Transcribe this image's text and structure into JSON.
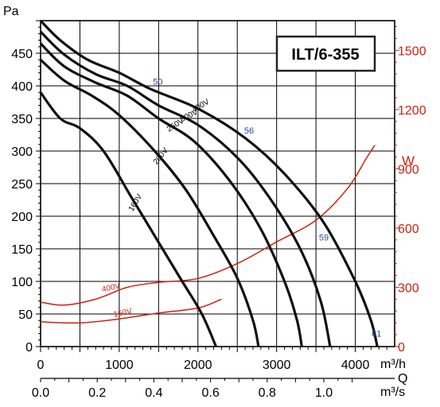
{
  "chart_data": {
    "type": "line",
    "model_label": "ILT/6-355",
    "x_axis": {
      "unit": "m³/h",
      "ticks": [
        0,
        1000,
        2000,
        3000,
        4000
      ],
      "range": [
        0,
        4500
      ]
    },
    "x2_axis": {
      "name": "Q",
      "unit": "m³/s",
      "ticks": [
        "0.0",
        "0.2",
        "0.4",
        "0.6",
        "0.8",
        "1.0"
      ]
    },
    "y_axis": {
      "unit": "Pa",
      "range": [
        0,
        500
      ],
      "ticks": [
        0,
        50,
        100,
        150,
        200,
        250,
        300,
        350,
        400,
        450
      ]
    },
    "y2_axis": {
      "unit": "W",
      "range": [
        0,
        1650
      ],
      "ticks": [
        0,
        300,
        600,
        900,
        1200,
        1500
      ]
    },
    "grid": true,
    "pressure_series": [
      {
        "name": "400V",
        "points": [
          [
            0,
            500
          ],
          [
            250,
            470
          ],
          [
            600,
            440
          ],
          [
            1000,
            420
          ],
          [
            1400,
            395
          ],
          [
            2000,
            365
          ],
          [
            2600,
            320
          ],
          [
            3100,
            265
          ],
          [
            3600,
            190
          ],
          [
            4000,
            100
          ],
          [
            4200,
            40
          ],
          [
            4280,
            0
          ]
        ]
      },
      {
        "name": "300V",
        "points": [
          [
            0,
            483
          ],
          [
            300,
            448
          ],
          [
            700,
            418
          ],
          [
            1100,
            400
          ],
          [
            1500,
            370
          ],
          [
            2000,
            340
          ],
          [
            2500,
            290
          ],
          [
            2900,
            230
          ],
          [
            3300,
            150
          ],
          [
            3560,
            70
          ],
          [
            3680,
            0
          ]
        ]
      },
      {
        "name": "250V",
        "points": [
          [
            0,
            465
          ],
          [
            300,
            430
          ],
          [
            700,
            405
          ],
          [
            1100,
            385
          ],
          [
            1500,
            350
          ],
          [
            1950,
            315
          ],
          [
            2400,
            255
          ],
          [
            2800,
            180
          ],
          [
            3100,
            100
          ],
          [
            3260,
            40
          ],
          [
            3320,
            0
          ]
        ]
      },
      {
        "name": "200V",
        "points": [
          [
            0,
            440
          ],
          [
            300,
            408
          ],
          [
            650,
            385
          ],
          [
            1000,
            355
          ],
          [
            1450,
            300
          ],
          [
            1850,
            240
          ],
          [
            2200,
            170
          ],
          [
            2500,
            105
          ],
          [
            2700,
            40
          ],
          [
            2770,
            0
          ]
        ]
      },
      {
        "name": "160V",
        "points": [
          [
            0,
            390
          ],
          [
            250,
            350
          ],
          [
            500,
            335
          ],
          [
            800,
            300
          ],
          [
            1150,
            230
          ],
          [
            1500,
            160
          ],
          [
            1800,
            100
          ],
          [
            2050,
            50
          ],
          [
            2230,
            0
          ]
        ]
      }
    ],
    "power_series": [
      {
        "name": "400V",
        "unit": "W",
        "points": [
          [
            0,
            225
          ],
          [
            300,
            210
          ],
          [
            700,
            240
          ],
          [
            1100,
            300
          ],
          [
            1500,
            325
          ],
          [
            2000,
            345
          ],
          [
            2500,
            420
          ],
          [
            3000,
            530
          ],
          [
            3500,
            640
          ],
          [
            3900,
            800
          ],
          [
            4150,
            960
          ],
          [
            4250,
            1020
          ]
        ]
      },
      {
        "name": "160V",
        "unit": "W",
        "points": [
          [
            0,
            125
          ],
          [
            500,
            120
          ],
          [
            1000,
            140
          ],
          [
            1500,
            170
          ],
          [
            2000,
            195
          ],
          [
            2300,
            240
          ]
        ]
      }
    ],
    "voltage_labels": [
      "400V",
      "300V",
      "250V",
      "200V",
      "160V"
    ],
    "power_labels": [
      "400V",
      "160V"
    ],
    "markers": [
      {
        "text": "50",
        "x": 1490,
        "y": 402
      },
      {
        "text": "56",
        "x": 2650,
        "y": 327
      },
      {
        "text": "59",
        "x": 3600,
        "y": 163
      },
      {
        "text": "61",
        "x": 4270,
        "y": 15
      }
    ]
  }
}
